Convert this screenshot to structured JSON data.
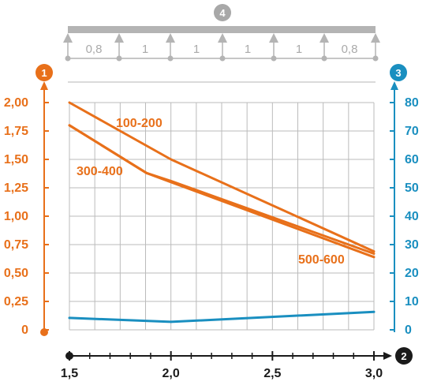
{
  "chart_data": {
    "type": "line",
    "x": [
      1.5,
      2.0,
      2.5,
      3.0
    ],
    "x_tick_labels": [
      "1,5",
      "2,0",
      "2,5",
      "3,0"
    ],
    "xlim": [
      1.5,
      3.0
    ],
    "ylim": [
      0,
      2.0
    ],
    "y_tick_values": [
      0,
      0.25,
      0.5,
      0.75,
      1.0,
      1.25,
      1.5,
      1.75,
      2.0
    ],
    "y_tick_labels": [
      "0",
      "0,25",
      "0,50",
      "0,75",
      "1,00",
      "1,25",
      "1,50",
      "1,75",
      "2,00"
    ],
    "y2lim": [
      0,
      80
    ],
    "y2_tick_values": [
      0,
      10,
      20,
      30,
      40,
      50,
      60,
      70,
      80
    ],
    "y2_tick_labels": [
      "0",
      "10",
      "20",
      "30",
      "40",
      "50",
      "60",
      "70",
      "80"
    ],
    "grid": true,
    "series": [
      {
        "name": "100-200",
        "axis": "left",
        "color": "#e8701a",
        "points": [
          [
            1.5,
            2.0
          ],
          [
            2.0,
            1.5
          ],
          [
            3.0,
            0.69
          ]
        ]
      },
      {
        "name": "300-400",
        "axis": "left",
        "color": "#e8701a",
        "points": [
          [
            1.5,
            1.8
          ],
          [
            1.88,
            1.38
          ],
          [
            2.0,
            1.31
          ],
          [
            3.0,
            0.67
          ]
        ]
      },
      {
        "name": "500-600",
        "axis": "left",
        "color": "#e8701a",
        "points": [
          [
            1.5,
            1.8
          ],
          [
            1.88,
            1.38
          ],
          [
            2.0,
            1.3
          ],
          [
            3.0,
            0.64
          ]
        ]
      },
      {
        "name": "",
        "axis": "right",
        "color": "#1a8fc0",
        "points": [
          [
            1.5,
            4.2
          ],
          [
            2.0,
            2.8
          ],
          [
            3.0,
            6.3
          ]
        ]
      }
    ],
    "beam": {
      "badge": "4",
      "span_labels": [
        "0,8",
        "1",
        "1",
        "1",
        "1",
        "0,8"
      ]
    },
    "badges": {
      "left_axis": "1",
      "x_axis": "2",
      "right_axis": "3"
    },
    "colors": {
      "left_axis": "#e8701a",
      "right_axis": "#1a8fc0",
      "x_axis": "#1a1a1a",
      "beam": "#b4b4b4",
      "grid": "#bbbbbb"
    }
  }
}
